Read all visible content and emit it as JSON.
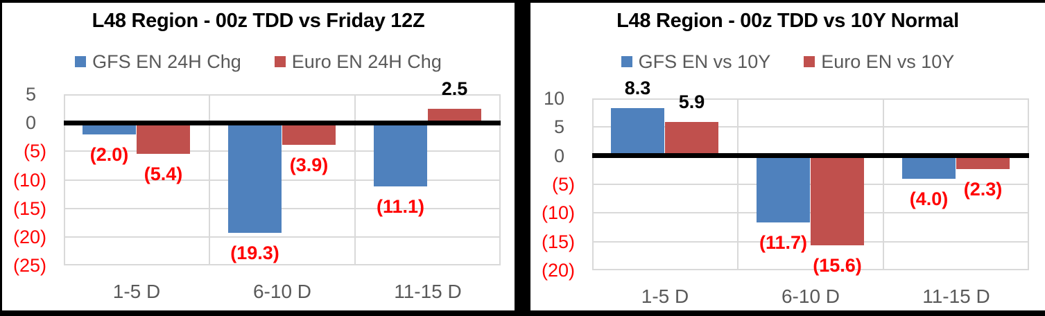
{
  "page": {
    "background": "#000000"
  },
  "colors": {
    "series_blue": "#4F81BD",
    "series_red": "#C0504D",
    "negative_text": "#FF0000",
    "positive_text": "#000000",
    "axis_text": "#595959",
    "gridline": "#D9D9D9",
    "zero_line": "#000000"
  },
  "chart_data": [
    {
      "type": "bar",
      "title": "L48 Region - 00z TDD vs Friday 12Z",
      "categories": [
        "1-5 D",
        "6-10 D",
        "11-15 D"
      ],
      "series": [
        {
          "name": "GFS EN 24H Chg",
          "color": "#4F81BD",
          "values": [
            -2.0,
            -19.3,
            -11.1
          ],
          "labels": [
            "(2.0)",
            "(19.3)",
            "(11.1)"
          ]
        },
        {
          "name": "Euro EN 24H Chg",
          "color": "#C0504D",
          "values": [
            -5.4,
            -3.9,
            2.5
          ],
          "labels": [
            "(5.4)",
            "(3.9)",
            "2.5"
          ]
        }
      ],
      "ylim": [
        -25,
        5
      ],
      "yticks": [
        {
          "value": 5,
          "label": "5"
        },
        {
          "value": 0,
          "label": "0"
        },
        {
          "value": -5,
          "label": "(5)"
        },
        {
          "value": -10,
          "label": "(10)"
        },
        {
          "value": -15,
          "label": "(15)"
        },
        {
          "value": -20,
          "label": "(20)"
        },
        {
          "value": -25,
          "label": "(25)"
        }
      ],
      "legend_position": "top",
      "grid": true
    },
    {
      "type": "bar",
      "title": "L48 Region - 00z TDD vs 10Y Normal",
      "categories": [
        "1-5 D",
        "6-10 D",
        "11-15 D"
      ],
      "series": [
        {
          "name": "GFS EN vs 10Y",
          "color": "#4F81BD",
          "values": [
            8.3,
            -11.7,
            -4.0
          ],
          "labels": [
            "8.3",
            "(11.7)",
            "(4.0)"
          ]
        },
        {
          "name": "Euro EN vs 10Y",
          "color": "#C0504D",
          "values": [
            5.9,
            -15.6,
            -2.3
          ],
          "labels": [
            "5.9",
            "(15.6)",
            "(2.3)"
          ]
        }
      ],
      "ylim": [
        -20,
        10
      ],
      "yticks": [
        {
          "value": 10,
          "label": "10"
        },
        {
          "value": 5,
          "label": "5"
        },
        {
          "value": 0,
          "label": "0"
        },
        {
          "value": -5,
          "label": "(5)"
        },
        {
          "value": -10,
          "label": "(10)"
        },
        {
          "value": -15,
          "label": "(15)"
        },
        {
          "value": -20,
          "label": "(20)"
        }
      ],
      "legend_position": "top",
      "grid": true
    }
  ]
}
